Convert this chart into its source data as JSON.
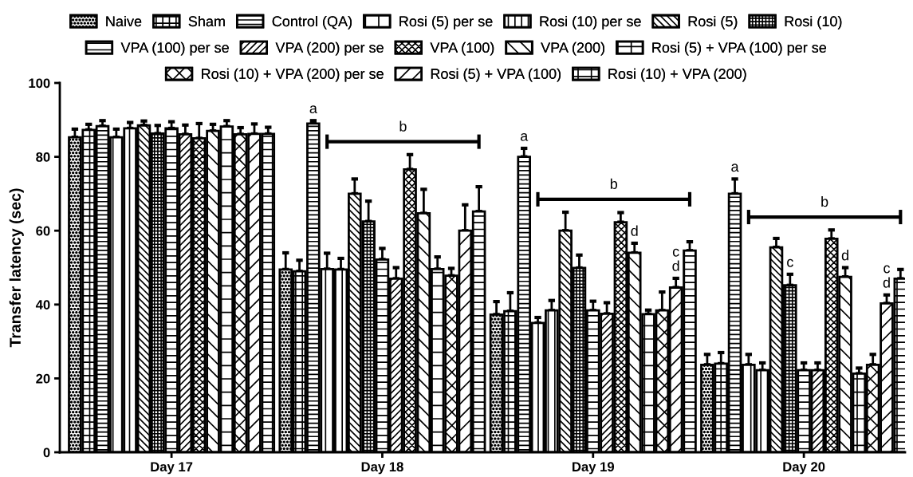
{
  "chart_data": {
    "type": "bar",
    "ylabel": "Transfer latency (sec)",
    "categories": [
      "Day 17",
      "Day 18",
      "Day 19",
      "Day 20"
    ],
    "ylim": [
      0,
      100
    ],
    "yticks": [
      0,
      20,
      40,
      60,
      80,
      100
    ],
    "grid": false,
    "legend": "top",
    "series": [
      {
        "name": "Naive",
        "color": "#000000",
        "values": [
          85.3,
          49.5,
          37.3,
          23.7
        ],
        "errors": [
          2.2,
          4.5,
          3.5,
          2.8
        ]
      },
      {
        "name": "Sham",
        "color": "#000000",
        "values": [
          87.3,
          49,
          38.2,
          24
        ],
        "errors": [
          1.5,
          3,
          5,
          3
        ]
      },
      {
        "name": "Control (QA)",
        "color": "#000000",
        "values": [
          88.3,
          89,
          80,
          70
        ],
        "errors": [
          1.5,
          0.8,
          2.3,
          4
        ],
        "value_labels": [
          null,
          "a",
          "a",
          "a"
        ]
      },
      {
        "name": "Rosi (5) per se",
        "color": "#000000",
        "values": [
          85.3,
          49.6,
          35,
          23.7
        ],
        "errors": [
          2.2,
          4.3,
          1.5,
          2.8
        ]
      },
      {
        "name": "Rosi (10) per se",
        "color": "#000000",
        "values": [
          87.7,
          49.5,
          38.4,
          22.2
        ],
        "errors": [
          1.6,
          3,
          2.7,
          2
        ]
      },
      {
        "name": "Rosi (5)",
        "color": "#000000",
        "values": [
          88.5,
          70,
          60,
          55.5
        ],
        "errors": [
          1.2,
          4,
          5,
          2.4
        ]
      },
      {
        "name": "Rosi (10)",
        "color": "#000000",
        "values": [
          86.3,
          62.5,
          49.9,
          45.2
        ],
        "errors": [
          2.2,
          5.5,
          3.5,
          3
        ],
        "value_labels": [
          null,
          null,
          null,
          "c"
        ]
      },
      {
        "name": "VPA (100) per se",
        "color": "#000000",
        "values": [
          87.7,
          52.2,
          38.4,
          22.2
        ],
        "errors": [
          1.8,
          3,
          2.5,
          2
        ]
      },
      {
        "name": "VPA (200) per se",
        "color": "#000000",
        "values": [
          86.1,
          47,
          37.5,
          22.2
        ],
        "errors": [
          2.5,
          3,
          3,
          2
        ]
      },
      {
        "name": "VPA (100)",
        "color": "#000000",
        "values": [
          85,
          76.6,
          62.3,
          57.8
        ],
        "errors": [
          4,
          4,
          2.6,
          2.4
        ]
      },
      {
        "name": "VPA (200)",
        "color": "#000000",
        "values": [
          87,
          64.7,
          54,
          47.5
        ],
        "errors": [
          1.8,
          6.5,
          2.6,
          2.5
        ],
        "value_labels": [
          null,
          null,
          "d",
          "d"
        ]
      },
      {
        "name": "Rosi (5) + VPA (100) per se",
        "color": "#000000",
        "values": [
          88.2,
          49.6,
          37.4,
          21.3
        ],
        "errors": [
          1.6,
          3.3,
          1.1,
          1.5
        ]
      },
      {
        "name": "Rosi (10) + VPA (200) per se",
        "color": "#000000",
        "values": [
          86.1,
          47.8,
          38.4,
          23.7
        ],
        "errors": [
          1.8,
          2,
          5,
          2.8
        ]
      },
      {
        "name": "Rosi (5) + VPA (100)",
        "color": "#000000",
        "values": [
          86.2,
          60,
          44.6,
          40.3
        ],
        "errors": [
          2.7,
          7,
          2.5,
          2.3
        ],
        "value_labels": [
          null,
          null,
          "c\nd",
          "c\nd"
        ]
      },
      {
        "name": "Rosi (10) + VPA (200)",
        "color": "#000000",
        "values": [
          86.2,
          65.2,
          54.6,
          47
        ],
        "errors": [
          1.8,
          6.7,
          2.4,
          2.5
        ]
      }
    ],
    "annotations": [
      "b",
      "b",
      "b"
    ]
  }
}
